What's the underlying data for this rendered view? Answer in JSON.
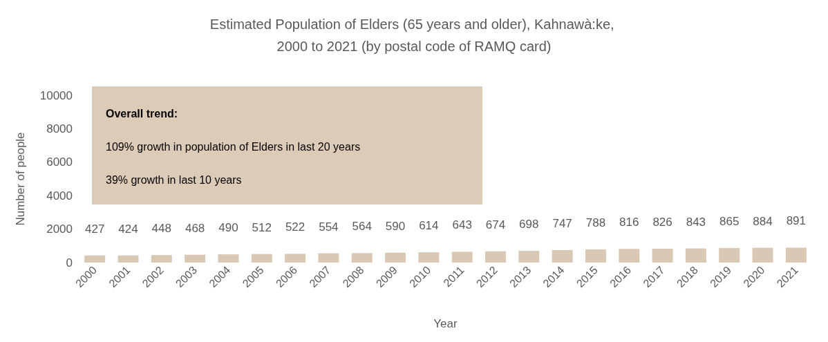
{
  "chart_data": {
    "type": "bar",
    "title": "Estimated Population of Elders (65 years and older), Kahnawà:ke, 2000 to 2021 (by postal code of RAMQ card)",
    "xlabel": "Year",
    "ylabel": "Number of people",
    "categories": [
      "2000",
      "2001",
      "2002",
      "2003",
      "2004",
      "2005",
      "2006",
      "2007",
      "2008",
      "2009",
      "2010",
      "2011",
      "2012",
      "2013",
      "2014",
      "2015",
      "2016",
      "2017",
      "2018",
      "2019",
      "2020",
      "2021"
    ],
    "values": [
      427,
      424,
      448,
      468,
      490,
      512,
      522,
      554,
      564,
      590,
      614,
      643,
      674,
      698,
      747,
      788,
      816,
      826,
      843,
      865,
      884,
      891
    ],
    "color": "#d9c8b4",
    "ylim": [
      0,
      10000
    ],
    "yticks": [
      0,
      2000,
      4000,
      6000,
      8000,
      10000
    ],
    "grid": false,
    "data_labels": true,
    "annotations": [
      "Overall trend:",
      "109% growth in population of Elders in last 20 years",
      "39% growth in last 10 years"
    ]
  }
}
